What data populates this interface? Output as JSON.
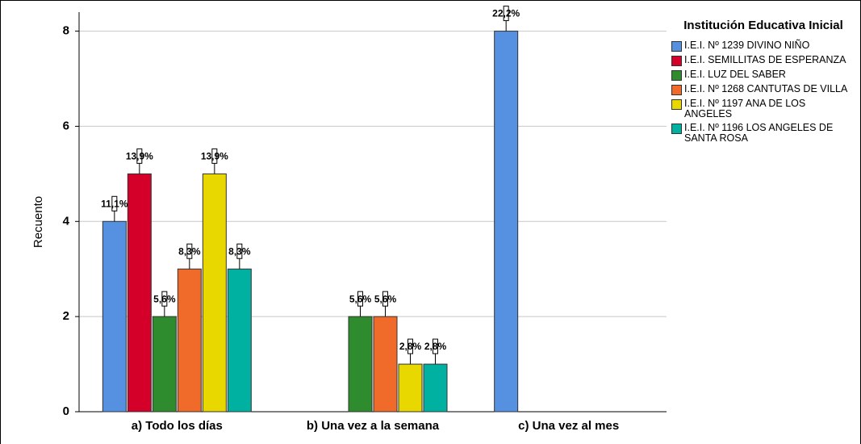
{
  "chart_data": {
    "type": "bar",
    "categories": [
      "a) Todo los días",
      "b) Una vez a la semana",
      "c) Una vez al mes"
    ],
    "y_label": "Recuento",
    "legend_title": "Institución Educativa Inicial",
    "series": [
      {
        "name": "I.E.I. Nº 1239 DIVINO NIÑO",
        "color": "#5591e0",
        "values": [
          4,
          null,
          8
        ],
        "value_labels": [
          "11,1%",
          null,
          "22,2%"
        ]
      },
      {
        "name": "I.E.I. SEMILLITAS DE ESPERANZA",
        "color": "#d4002a",
        "values": [
          5,
          null,
          null
        ],
        "value_labels": [
          "13,9%",
          null,
          null
        ]
      },
      {
        "name": "I.E.I. LUZ DEL SABER",
        "color": "#2e8b2e",
        "values": [
          2,
          2,
          null
        ],
        "value_labels": [
          "5,6%",
          "5,6%",
          null
        ]
      },
      {
        "name": "I.E.I. Nº 1268 CANTUTAS DE VILLA",
        "color": "#f06a2a",
        "values": [
          3,
          2,
          null
        ],
        "value_labels": [
          "8,3%",
          "5,6%",
          null
        ]
      },
      {
        "name": "I.E.I. Nº 1197 ANA DE LOS ANGELES",
        "color": "#e8d800",
        "values": [
          5,
          1,
          null
        ],
        "value_labels": [
          "13,9%",
          "2,8%",
          null
        ]
      },
      {
        "name": "I.E.I. Nº 1196 LOS ANGELES DE SANTA ROSA",
        "color": "#00b0a0",
        "values": [
          3,
          1,
          null
        ],
        "value_labels": [
          "8,3%",
          "2,8%",
          null
        ]
      }
    ],
    "ylim": [
      0,
      8.4
    ],
    "yticks": [
      0,
      2,
      4,
      6,
      8
    ],
    "grid": true,
    "legend": "right"
  }
}
